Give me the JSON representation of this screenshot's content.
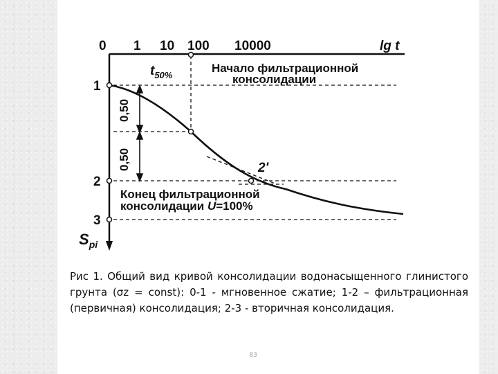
{
  "diagram": {
    "axis_top_ticks": [
      "0",
      "1",
      "10",
      "100",
      "10000"
    ],
    "axis_top_label": "lg t",
    "t50_label": "t",
    "t50_sub": "50%",
    "start_label_line1": "Начало фильтрационной",
    "start_label_line2": "консолидации",
    "end_label_line1": "Конец фильтрационной",
    "end_label_line2_a": "консолидации ",
    "end_label_line2_b": "U",
    "end_label_line2_c": "=100%",
    "point_labels": [
      "1",
      "2",
      "3"
    ],
    "point_2prime": "2'",
    "half_label_upper": "0,50",
    "half_label_lower": "0,50",
    "axis_left_label": "S",
    "axis_left_sub": "pi"
  },
  "caption": "Рис 1. Общий вид кривой консолидации водонасыщенного глинистого грунта (σz = const): 0-1 - мгновенное сжатие; 1-2 – фильтрационная (первичная) консолидация; 2-3 - вторичная консолидация.",
  "page_number": "83"
}
